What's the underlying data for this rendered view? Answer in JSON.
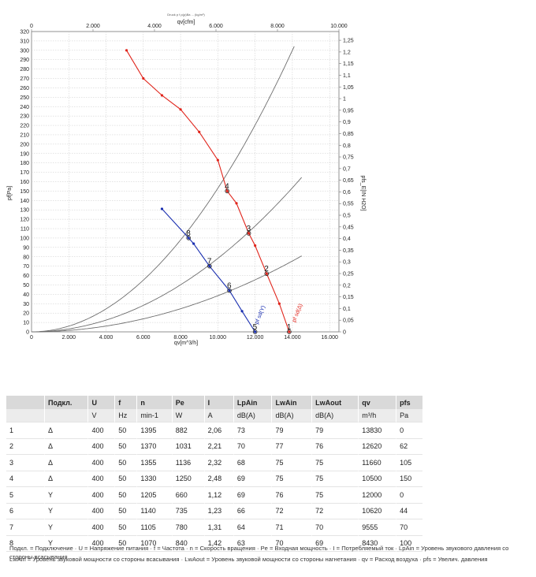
{
  "chart_data": {
    "type": "line",
    "title": "Druck p f ρ(ρ)Ba ... (kg/m³)",
    "x_bottom": {
      "label": "qv[m^3/h]",
      "ticks": [
        "0",
        "2.000",
        "4.000",
        "6.000",
        "8.000",
        "10.000",
        "12.000",
        "14.000",
        "16.000"
      ],
      "range": [
        0,
        16500
      ]
    },
    "x_top": {
      "label": "qv[cfm]",
      "ticks": [
        "0",
        "2.000",
        "4.000",
        "6.000",
        "8.000",
        "10.000"
      ],
      "range": [
        0,
        10000
      ]
    },
    "y_left": {
      "label": "pf[Pa]",
      "ticks": [
        "0",
        "10",
        "20",
        "30",
        "40",
        "50",
        "60",
        "70",
        "80",
        "90",
        "100",
        "110",
        "120",
        "130",
        "140",
        "150",
        "160",
        "170",
        "180",
        "190",
        "200",
        "210",
        "220",
        "230",
        "240",
        "250",
        "260",
        "270",
        "280",
        "290",
        "300",
        "310",
        "320"
      ],
      "range": [
        0,
        320
      ]
    },
    "y_right": {
      "label": "pfs_E[IN H2O]",
      "ticks": [
        "0",
        "0,05",
        "0,1",
        "0,15",
        "0,2",
        "0,25",
        "0,3",
        "0,35",
        "0,4",
        "0,45",
        "0,5",
        "0,55",
        "0,6",
        "0,65",
        "0,7",
        "0,75",
        "0,8",
        "0,85",
        "0,9",
        "0,95",
        "1",
        "1,05",
        "1,1",
        "1,15",
        "1,2",
        "1,25"
      ],
      "range": [
        0,
        1.25
      ]
    },
    "grid": true,
    "series": [
      {
        "name": "pf sd(Δ)",
        "color": "#e0241b",
        "x": [
          5100,
          6000,
          7000,
          8000,
          9000,
          10000,
          10500,
          11000,
          11660,
          12000,
          12620,
          13300,
          13830
        ],
        "y": [
          300,
          270,
          252,
          237,
          213,
          183,
          150,
          137,
          105,
          92,
          62,
          30,
          0
        ]
      },
      {
        "name": "pf sd(Y)",
        "color": "#1a2fb0",
        "x": [
          7000,
          8430,
          8700,
          9555,
          10620,
          11300,
          12000
        ],
        "y": [
          131,
          100,
          94,
          70,
          44,
          22,
          0
        ]
      }
    ],
    "system_curves": [
      {
        "k": 0.00153,
        "x_max": 14500
      },
      {
        "k": 0.000783,
        "x_max": 14500
      },
      {
        "k": 0.000385,
        "x_max": 14500
      }
    ],
    "operating_points": [
      {
        "label": "1",
        "x": 13830,
        "y": 0
      },
      {
        "label": "2",
        "x": 12620,
        "y": 62
      },
      {
        "label": "3",
        "x": 11660,
        "y": 105
      },
      {
        "label": "4",
        "x": 10500,
        "y": 150
      },
      {
        "label": "5",
        "x": 12000,
        "y": 0
      },
      {
        "label": "6",
        "x": 10620,
        "y": 44
      },
      {
        "label": "7",
        "x": 9555,
        "y": 70
      },
      {
        "label": "8",
        "x": 8430,
        "y": 100
      }
    ],
    "curve_labels": [
      {
        "text": "pf sd(Δ)",
        "x": 14150,
        "y": 10,
        "color": "#e0241b"
      },
      {
        "text": "pf sd(Y)",
        "x": 12150,
        "y": 8,
        "color": "#1a2fb0"
      }
    ]
  },
  "table": {
    "headers": [
      "",
      "Подкл.",
      "U",
      "f",
      "n",
      "Pe",
      "I",
      "LpAin",
      "LwAin",
      "LwAout",
      "qv",
      "pfs"
    ],
    "units": [
      "",
      "",
      "V",
      "Hz",
      "min-1",
      "W",
      "A",
      "dB(A)",
      "dB(A)",
      "dB(A)",
      "m³/h",
      "Pa"
    ],
    "rows": [
      [
        "1",
        "Δ",
        "400",
        "50",
        "1395",
        "882",
        "2,06",
        "73",
        "79",
        "79",
        "13830",
        "0"
      ],
      [
        "2",
        "Δ",
        "400",
        "50",
        "1370",
        "1031",
        "2,21",
        "70",
        "77",
        "76",
        "12620",
        "62"
      ],
      [
        "3",
        "Δ",
        "400",
        "50",
        "1355",
        "1136",
        "2,32",
        "68",
        "75",
        "75",
        "11660",
        "105"
      ],
      [
        "4",
        "Δ",
        "400",
        "50",
        "1330",
        "1250",
        "2,48",
        "69",
        "75",
        "75",
        "10500",
        "150"
      ],
      [
        "5",
        "Y",
        "400",
        "50",
        "1205",
        "660",
        "1,12",
        "69",
        "76",
        "75",
        "12000",
        "0"
      ],
      [
        "6",
        "Y",
        "400",
        "50",
        "1140",
        "735",
        "1,23",
        "66",
        "72",
        "72",
        "10620",
        "44"
      ],
      [
        "7",
        "Y",
        "400",
        "50",
        "1105",
        "780",
        "1,31",
        "64",
        "71",
        "70",
        "9555",
        "70"
      ],
      [
        "8",
        "Y",
        "400",
        "50",
        "1070",
        "840",
        "1,42",
        "63",
        "70",
        "69",
        "8430",
        "100"
      ]
    ]
  },
  "legend": {
    "line1": "Подкл. = Подключение · U = Напряжение питания · f = Частота · n = Скорость вращения · Pe = Входная мощность · I = Потребляемый ток · LpAin = Уровень звукового давления со стороны всасывания",
    "line2": "LwAin = Уровень звуковой мощности со стороны всасывания · LwAout = Уровень звуковой мощности со стороны нагнетания · qv = Расход воздуха · pfs = Увелич. давления"
  }
}
